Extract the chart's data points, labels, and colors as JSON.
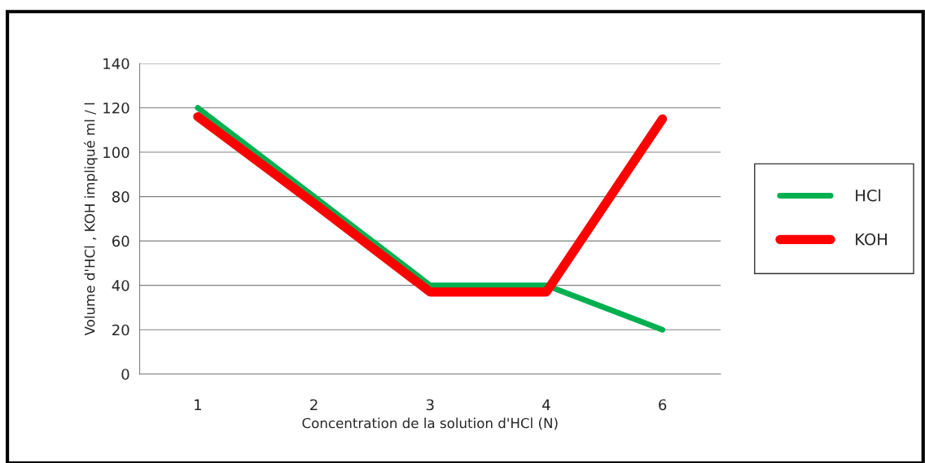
{
  "chart_data": {
    "type": "line",
    "xlabel": "Concentration de la solution d'HCl (N)",
    "ylabel": "Volume d'HCl , KOH impliqué ml / l",
    "categories": [
      "1",
      "2",
      "3",
      "4",
      "6"
    ],
    "series": [
      {
        "name": "HCl",
        "color": "#00b050",
        "values": [
          120,
          80,
          40,
          40,
          20
        ]
      },
      {
        "name": "KOH",
        "color": "#ff0000",
        "values": [
          116,
          77,
          37,
          37,
          115
        ]
      }
    ],
    "ylim": [
      0,
      140
    ],
    "yticks": [
      0,
      20,
      40,
      60,
      80,
      100,
      120,
      140
    ],
    "grid": "y",
    "legend": "right",
    "marker": "none",
    "line_style": "solid"
  }
}
